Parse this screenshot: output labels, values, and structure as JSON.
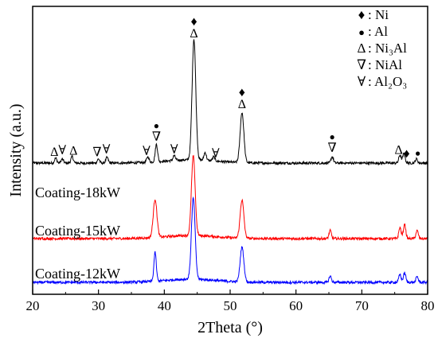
{
  "chart_data": {
    "type": "line",
    "title": "",
    "xlabel": "2Theta (°)",
    "ylabel": "Intensity (a.u.)",
    "xlim": [
      20,
      80
    ],
    "x_ticks": [
      20,
      30,
      40,
      50,
      60,
      70,
      80
    ],
    "y_ticks_shown": false,
    "grid": false,
    "legend_position": "top-right",
    "legend": [
      {
        "symbol": "♦",
        "label": ": Ni"
      },
      {
        "symbol": "●",
        "label": ": Al"
      },
      {
        "symbol": "Δ",
        "label": ": Ni₃Al"
      },
      {
        "symbol": "∇",
        "label": ": NiAl"
      },
      {
        "symbol": "∀",
        "label": ": Al₂O₃"
      }
    ],
    "series": [
      {
        "name": "Coating-18kW",
        "color": "#000000",
        "baseline": 205,
        "peaks": [
          {
            "x": 23.5,
            "h": 6
          },
          {
            "x": 24.5,
            "h": 5
          },
          {
            "x": 26.0,
            "h": 8
          },
          {
            "x": 30.0,
            "h": 5
          },
          {
            "x": 31.3,
            "h": 7
          },
          {
            "x": 37.5,
            "h": 7
          },
          {
            "x": 38.8,
            "h": 22
          },
          {
            "x": 41.5,
            "h": 6
          },
          {
            "x": 44.5,
            "h": 152
          },
          {
            "x": 46.2,
            "h": 10
          },
          {
            "x": 47.5,
            "h": 5
          },
          {
            "x": 51.8,
            "h": 63
          },
          {
            "x": 65.5,
            "h": 8
          },
          {
            "x": 75.8,
            "h": 10
          },
          {
            "x": 76.4,
            "h": 12
          },
          {
            "x": 78.3,
            "h": 5
          }
        ]
      },
      {
        "name": "Coating-15kW",
        "color": "#ff0000",
        "baseline": 300,
        "peaks": [
          {
            "x": 38.6,
            "h": 48
          },
          {
            "x": 44.4,
            "h": 100
          },
          {
            "x": 51.8,
            "h": 48
          },
          {
            "x": 65.2,
            "h": 10
          },
          {
            "x": 75.8,
            "h": 14
          },
          {
            "x": 76.5,
            "h": 18
          },
          {
            "x": 78.4,
            "h": 10
          }
        ]
      },
      {
        "name": "Coating-12kW",
        "color": "#0000ff",
        "baseline": 355,
        "peaks": [
          {
            "x": 38.6,
            "h": 36
          },
          {
            "x": 44.4,
            "h": 102
          },
          {
            "x": 51.8,
            "h": 44
          },
          {
            "x": 65.2,
            "h": 8
          },
          {
            "x": 75.8,
            "h": 10
          },
          {
            "x": 76.5,
            "h": 12
          },
          {
            "x": 78.4,
            "h": 7
          }
        ]
      }
    ],
    "peak_markers": [
      {
        "x": 44.5,
        "symbols": [
          "♦",
          "Δ"
        ]
      },
      {
        "x": 51.8,
        "symbols": [
          "♦",
          "Δ"
        ]
      },
      {
        "x": 38.8,
        "symbols": [
          "●",
          "∇"
        ]
      },
      {
        "x": 65.5,
        "symbols": [
          "●",
          "∇"
        ]
      },
      {
        "x": 23.3,
        "symbols": [
          "Δ"
        ]
      },
      {
        "x": 24.5,
        "symbols": [
          "∀"
        ]
      },
      {
        "x": 26.2,
        "symbols": [
          "Δ"
        ]
      },
      {
        "x": 29.8,
        "symbols": [
          "∇"
        ]
      },
      {
        "x": 31.2,
        "symbols": [
          "∀"
        ]
      },
      {
        "x": 37.3,
        "symbols": [
          "∀"
        ]
      },
      {
        "x": 41.5,
        "symbols": [
          "∀"
        ]
      },
      {
        "x": 47.8,
        "symbols": [
          "∀"
        ]
      },
      {
        "x": 75.6,
        "symbols": [
          "Δ"
        ]
      },
      {
        "x": 76.8,
        "symbols": [
          "♦"
        ]
      },
      {
        "x": 78.5,
        "symbols": [
          "●"
        ]
      }
    ]
  }
}
